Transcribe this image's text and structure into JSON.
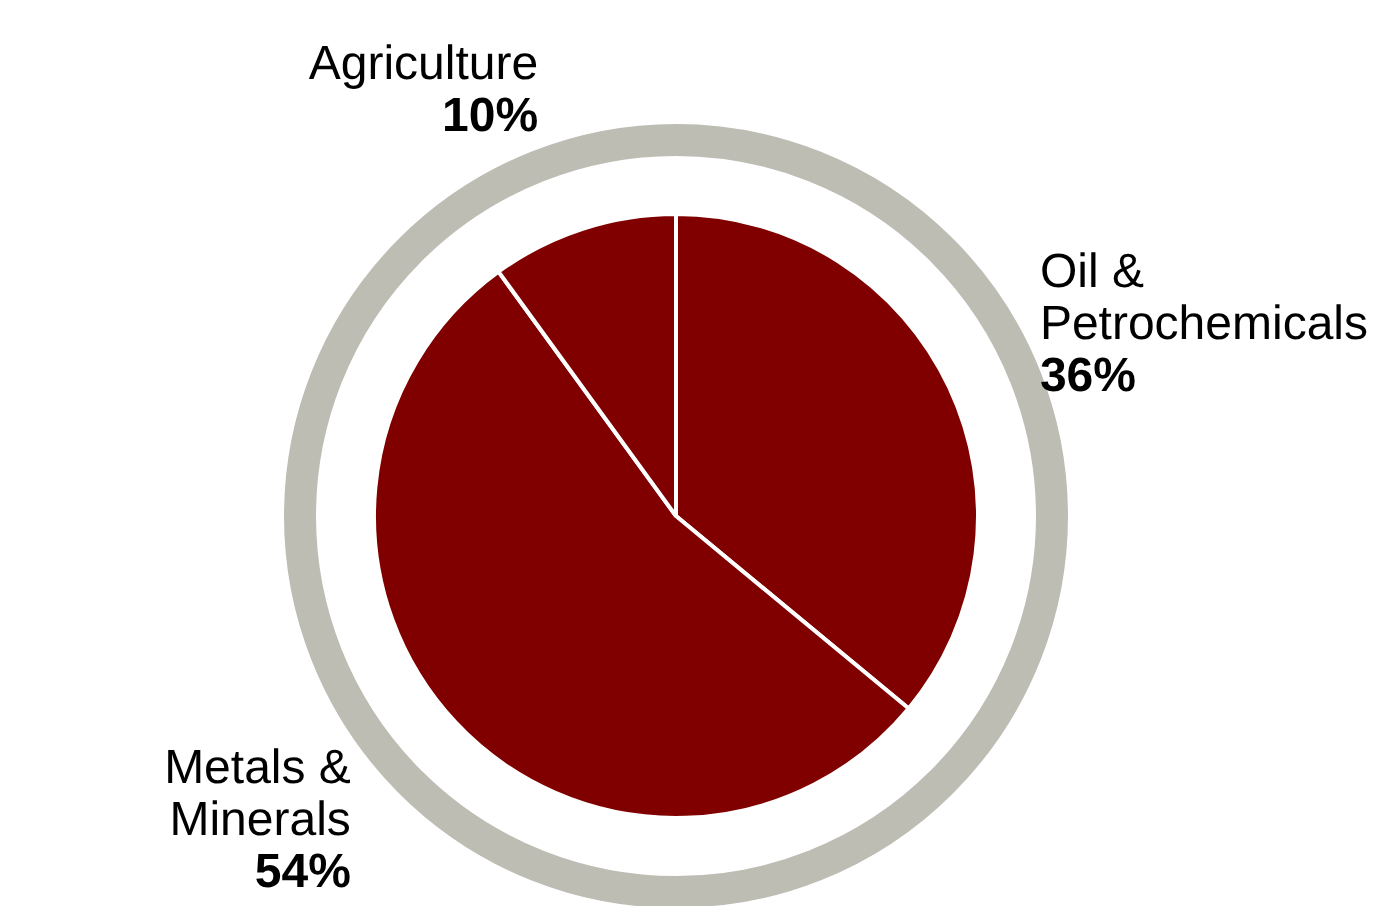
{
  "chart_data": {
    "type": "pie",
    "categories": [
      "Oil & Petrochemicals",
      "Metals & Minerals",
      "Agriculture"
    ],
    "values": [
      36,
      54,
      10
    ],
    "colors": [
      "#800000",
      "#800000",
      "#800000"
    ],
    "value_labels": [
      "36%",
      "54%",
      "10%"
    ],
    "legend": false
  }
}
